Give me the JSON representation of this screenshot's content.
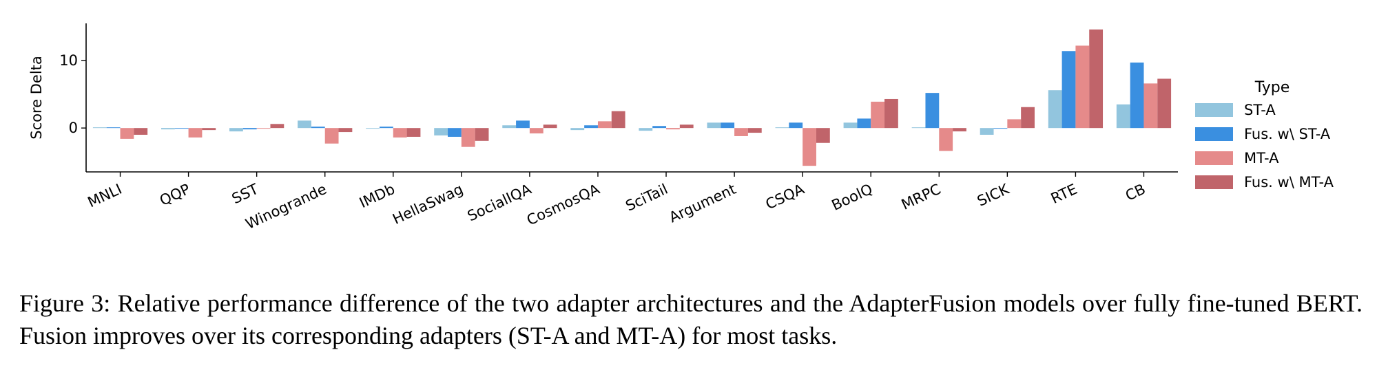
{
  "chart_data": {
    "type": "bar",
    "title": "",
    "xlabel": "",
    "ylabel": "Score Delta",
    "ylim": [
      -6.5,
      15.5
    ],
    "yticks": [
      0,
      10
    ],
    "categories": [
      "MNLI",
      "QQP",
      "SST",
      "Winogrande",
      "IMDb",
      "HellaSwag",
      "SocialIQA",
      "CosmosQA",
      "SciTail",
      "Argument",
      "CSQA",
      "BoolQ",
      "MRPC",
      "SICK",
      "RTE",
      "CB"
    ],
    "legend_title": "Type",
    "legend_position": "right",
    "grid": false,
    "series": [
      {
        "name": "ST-A",
        "color": "#92c5de",
        "values": [
          0.1,
          -0.2,
          -0.5,
          1.1,
          -0.1,
          -1.1,
          0.4,
          -0.3,
          -0.4,
          0.8,
          0.1,
          0.8,
          0.1,
          -1.0,
          5.6,
          3.5
        ]
      },
      {
        "name": "Fus. w\\ ST-A",
        "color": "#3a8fe0",
        "values": [
          0.1,
          -0.1,
          -0.2,
          0.2,
          0.2,
          -1.3,
          1.1,
          0.4,
          0.3,
          0.8,
          0.8,
          1.4,
          5.2,
          -0.1,
          11.4,
          9.7
        ]
      },
      {
        "name": "MT-A",
        "color": "#e58a8a",
        "values": [
          -1.6,
          -1.4,
          -0.1,
          -2.3,
          -1.4,
          -2.8,
          -0.8,
          1.0,
          -0.2,
          -1.2,
          -5.6,
          3.9,
          -3.4,
          1.3,
          12.2,
          6.6
        ]
      },
      {
        "name": "Fus. w\\ MT-A",
        "color": "#c0646a",
        "values": [
          -1.0,
          -0.3,
          0.6,
          -0.6,
          -1.3,
          -1.9,
          0.5,
          2.5,
          0.5,
          -0.7,
          -2.2,
          4.3,
          -0.5,
          3.1,
          14.6,
          7.3
        ]
      }
    ]
  },
  "caption": "Figure 3: Relative performance difference of the two adapter architectures and the AdapterFusion models over fully fine-tuned BERT. Fusion improves over its corresponding adapters (ST-A and MT-A) for most tasks."
}
